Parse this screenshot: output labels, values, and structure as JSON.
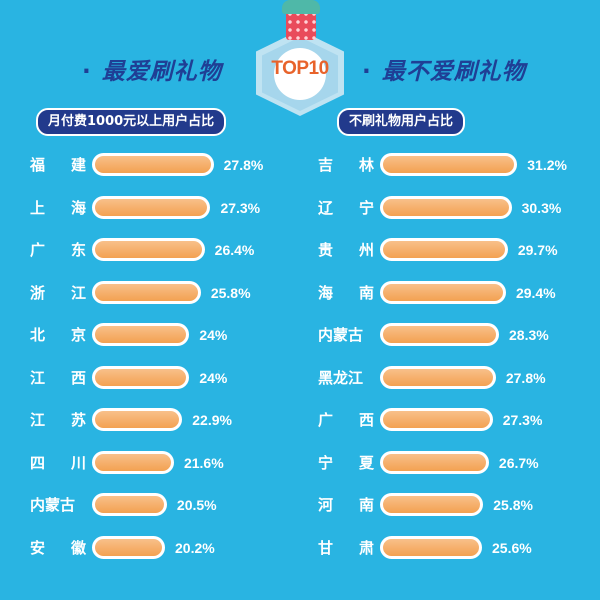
{
  "badge": {
    "label": "TOP10",
    "icon": "gift-box-icon"
  },
  "left": {
    "heading": "最爱刷礼物",
    "subtitle": "月付费1000元以上用户占比"
  },
  "right": {
    "heading": "最不爱刷礼物",
    "subtitle": "不刷礼物用户占比"
  },
  "colors": {
    "background": "#29b4e2",
    "heading": "#1f3f95",
    "pill": "#223a8c",
    "bar_top": "#f8c08a",
    "bar_bottom": "#f3a151",
    "badge_text": "#e8632b"
  },
  "chart_data": [
    {
      "type": "bar",
      "orientation": "horizontal",
      "title": "最爱刷礼物",
      "subtitle": "月付费1000元以上用户占比",
      "categories": [
        "福建",
        "上海",
        "广东",
        "浙江",
        "北京",
        "江西",
        "江苏",
        "四川",
        "内蒙古",
        "安徽"
      ],
      "values": [
        27.8,
        27.3,
        26.4,
        25.8,
        24,
        24,
        22.9,
        21.6,
        20.5,
        20.2
      ],
      "labels": [
        "27.8%",
        "27.3%",
        "26.4%",
        "25.8%",
        "24%",
        "24%",
        "22.9%",
        "21.6%",
        "20.5%",
        "20.2%"
      ],
      "unit": "%"
    },
    {
      "type": "bar",
      "orientation": "horizontal",
      "title": "最不爱刷礼物",
      "subtitle": "不刷礼物用户占比",
      "categories": [
        "吉林",
        "辽宁",
        "贵州",
        "海南",
        "内蒙古",
        "黑龙江",
        "广西",
        "宁夏",
        "河南",
        "甘肃"
      ],
      "values": [
        31.2,
        30.3,
        29.7,
        29.4,
        28.3,
        27.8,
        27.3,
        26.7,
        25.8,
        25.6
      ],
      "labels": [
        "31.2%",
        "30.3%",
        "29.7%",
        "29.4%",
        "28.3%",
        "27.8%",
        "27.3%",
        "26.7%",
        "25.8%",
        "25.6%"
      ],
      "unit": "%"
    }
  ]
}
